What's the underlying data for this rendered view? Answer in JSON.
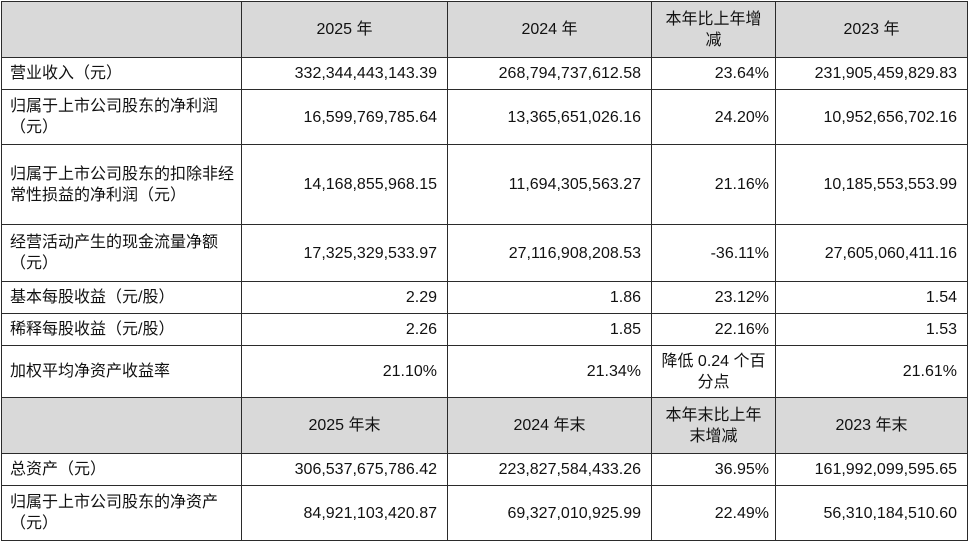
{
  "header1": {
    "col1": "2025 年",
    "col2": "2024 年",
    "col3": "本年比上年增减",
    "col4": "2023 年"
  },
  "rows1": [
    {
      "label": "营业收入（元）",
      "v2025": "332,344,443,143.39",
      "v2024": "268,794,737,612.58",
      "change": "23.64%",
      "v2023": "231,905,459,829.83"
    },
    {
      "label": "归属于上市公司股东的净利润（元）",
      "v2025": "16,599,769,785.64",
      "v2024": "13,365,651,026.16",
      "change": "24.20%",
      "v2023": "10,952,656,702.16"
    },
    {
      "label": "归属于上市公司股东的扣除非经常性损益的净利润（元）",
      "v2025": "14,168,855,968.15",
      "v2024": "11,694,305,563.27",
      "change": "21.16%",
      "v2023": "10,185,553,553.99"
    },
    {
      "label": "经营活动产生的现金流量净额（元）",
      "v2025": "17,325,329,533.97",
      "v2024": "27,116,908,208.53",
      "change": "-36.11%",
      "v2023": "27,605,060,411.16"
    },
    {
      "label": "基本每股收益（元/股）",
      "v2025": "2.29",
      "v2024": "1.86",
      "change": "23.12%",
      "v2023": "1.54"
    },
    {
      "label": "稀释每股收益（元/股）",
      "v2025": "2.26",
      "v2024": "1.85",
      "change": "22.16%",
      "v2023": "1.53"
    },
    {
      "label": "加权平均净资产收益率",
      "v2025": "21.10%",
      "v2024": "21.34%",
      "change": "降低 0.24 个百分点",
      "v2023": "21.61%"
    }
  ],
  "header2": {
    "col1": "2025 年末",
    "col2": "2024 年末",
    "col3": "本年末比上年末增减",
    "col4": "2023 年末"
  },
  "rows2": [
    {
      "label": "总资产（元）",
      "v2025": "306,537,675,786.42",
      "v2024": "223,827,584,433.26",
      "change": "36.95%",
      "v2023": "161,992,099,595.65"
    },
    {
      "label": "归属于上市公司股东的净资产（元）",
      "v2025": "84,921,103,420.87",
      "v2024": "69,327,010,925.99",
      "change": "22.49%",
      "v2023": "56,310,184,510.60"
    }
  ]
}
